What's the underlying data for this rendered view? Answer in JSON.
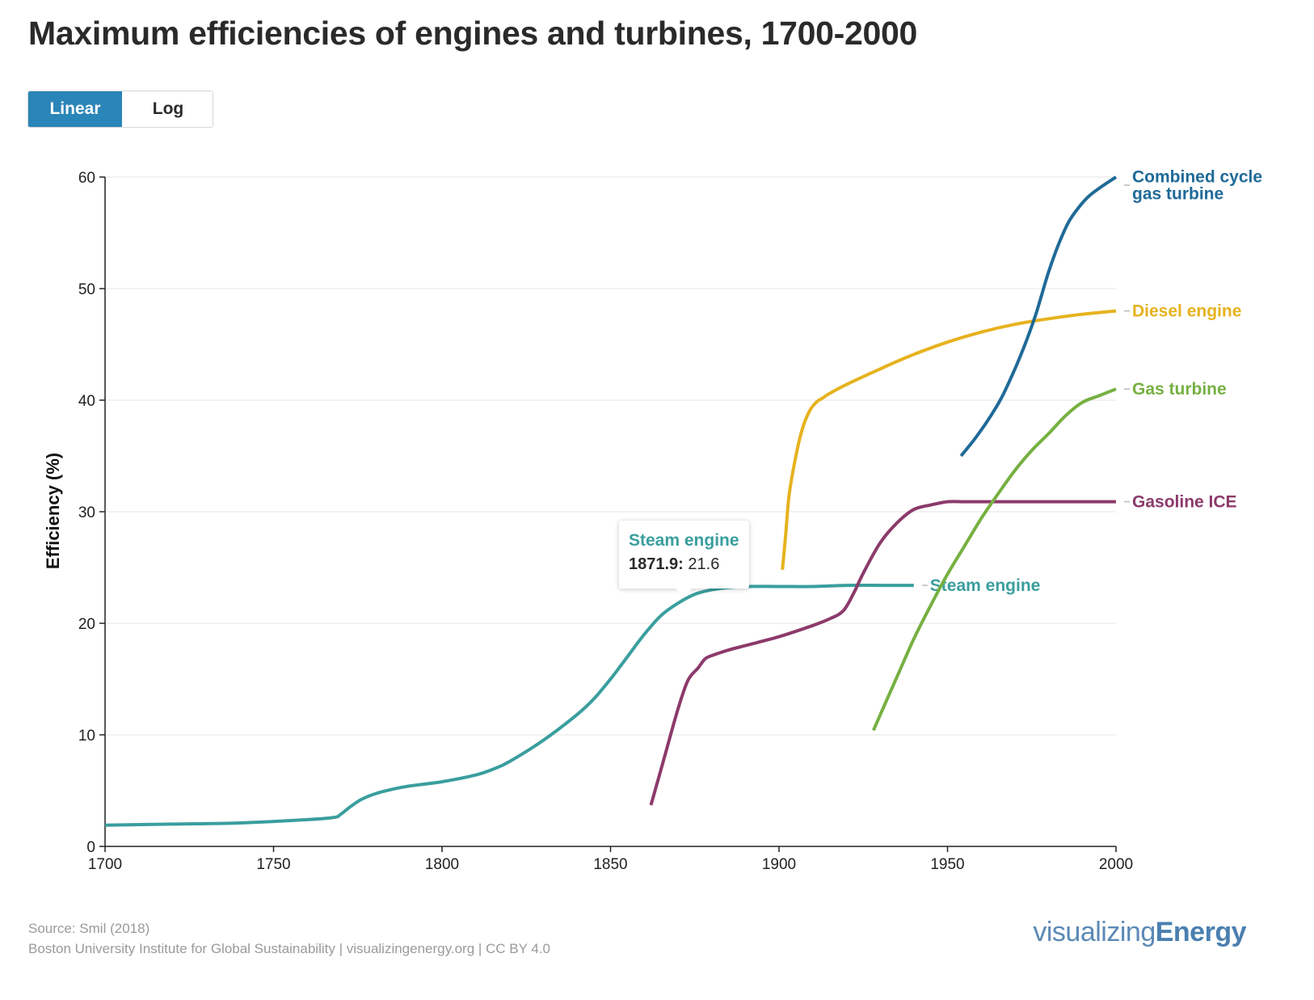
{
  "title": "Maximum efficiencies of engines and turbines, 1700-2000",
  "scale_toggle": {
    "linear_label": "Linear",
    "log_label": "Log",
    "selected": "Linear"
  },
  "tooltip": {
    "series": "Steam engine",
    "x": "1871.9:",
    "y": "21.6"
  },
  "footer": {
    "source": "Source: Smil (2018)",
    "credit": "Boston University Institute for Global Sustainability | visualizingenergy.org | CC BY 4.0",
    "logo_light": "visualizing",
    "logo_bold": "Energy"
  },
  "chart_data": {
    "type": "line",
    "title": "Maximum efficiencies of engines and turbines, 1700-2000",
    "xlabel": "",
    "ylabel": "Efficiency (%)",
    "xlim": [
      1700,
      2000
    ],
    "ylim": [
      0,
      60
    ],
    "xticks": [
      1700,
      1750,
      1800,
      1850,
      1900,
      1950,
      2000
    ],
    "yticks": [
      0,
      10,
      20,
      30,
      40,
      50,
      60
    ],
    "grid": "horizontal",
    "legend": "direct labels at right end of each series",
    "series": [
      {
        "name": "Steam engine",
        "label_lines": [
          "Steam engine"
        ],
        "color": "#3a9e9e",
        "x": [
          1700,
          1720,
          1740,
          1760,
          1768,
          1770,
          1773,
          1776,
          1780,
          1785,
          1790,
          1800,
          1810,
          1815,
          1820,
          1830,
          1840,
          1845,
          1850,
          1855,
          1860,
          1865,
          1870,
          1875,
          1880,
          1885,
          1890,
          1900,
          1910,
          1920,
          1930,
          1940
        ],
        "y": [
          1.9,
          2.0,
          2.1,
          2.4,
          2.6,
          2.9,
          3.6,
          4.2,
          4.7,
          5.1,
          5.4,
          5.8,
          6.4,
          6.9,
          7.6,
          9.5,
          11.8,
          13.2,
          15.0,
          17.0,
          19.0,
          20.7,
          21.8,
          22.6,
          23.0,
          23.2,
          23.3,
          23.3,
          23.3,
          23.4,
          23.4,
          23.4
        ]
      },
      {
        "name": "Gasoline ICE",
        "label_lines": [
          "Gasoline ICE"
        ],
        "color": "#8c3a6b",
        "x": [
          1862,
          1866,
          1870,
          1873,
          1876,
          1878,
          1880,
          1885,
          1890,
          1900,
          1910,
          1915,
          1919,
          1922,
          1925,
          1930,
          1935,
          1940,
          1945,
          1950,
          1955,
          1960,
          1970,
          1980,
          1990,
          2000
        ],
        "y": [
          3.7,
          8.0,
          12.3,
          14.9,
          16.0,
          16.8,
          17.1,
          17.6,
          18.0,
          18.8,
          19.8,
          20.4,
          21.1,
          22.6,
          24.5,
          27.2,
          29.0,
          30.2,
          30.6,
          30.9,
          30.9,
          30.9,
          30.9,
          30.9,
          30.9,
          30.9
        ]
      },
      {
        "name": "Diesel engine",
        "label_lines": [
          "Diesel engine"
        ],
        "color": "#e6b21e",
        "x": [
          1901,
          1902,
          1903,
          1905,
          1907,
          1909,
          1911,
          1913,
          1915,
          1920,
          1930,
          1940,
          1950,
          1960,
          1970,
          1980,
          1990,
          2000
        ],
        "y": [
          24.8,
          28.0,
          31.5,
          35.0,
          37.5,
          39.0,
          39.8,
          40.2,
          40.6,
          41.4,
          42.8,
          44.1,
          45.2,
          46.1,
          46.8,
          47.3,
          47.7,
          48.0
        ]
      },
      {
        "name": "Gas turbine",
        "label_lines": [
          "Gas turbine"
        ],
        "color": "#76b041",
        "x": [
          1928,
          1935,
          1940,
          1945,
          1950,
          1955,
          1960,
          1965,
          1970,
          1975,
          1980,
          1985,
          1990,
          1995,
          2000
        ],
        "y": [
          10.4,
          15.2,
          18.6,
          21.6,
          24.4,
          26.9,
          29.4,
          31.6,
          33.7,
          35.5,
          37.0,
          38.6,
          39.8,
          40.4,
          41.0
        ]
      },
      {
        "name": "Combined cycle gas turbine",
        "label_lines": [
          "Combined cycle",
          "gas turbine"
        ],
        "color": "#1f6a98",
        "x": [
          1954,
          1958,
          1962,
          1966,
          1970,
          1973,
          1976,
          1978,
          1980,
          1983,
          1986,
          1989,
          1992,
          1996,
          2000
        ],
        "y": [
          35.0,
          36.5,
          38.2,
          40.2,
          42.8,
          45.0,
          47.5,
          49.5,
          51.5,
          54.0,
          56.0,
          57.3,
          58.3,
          59.2,
          60.0
        ]
      }
    ],
    "annotation": {
      "series": "Steam engine",
      "x": 1871.9,
      "y": 21.6
    }
  }
}
